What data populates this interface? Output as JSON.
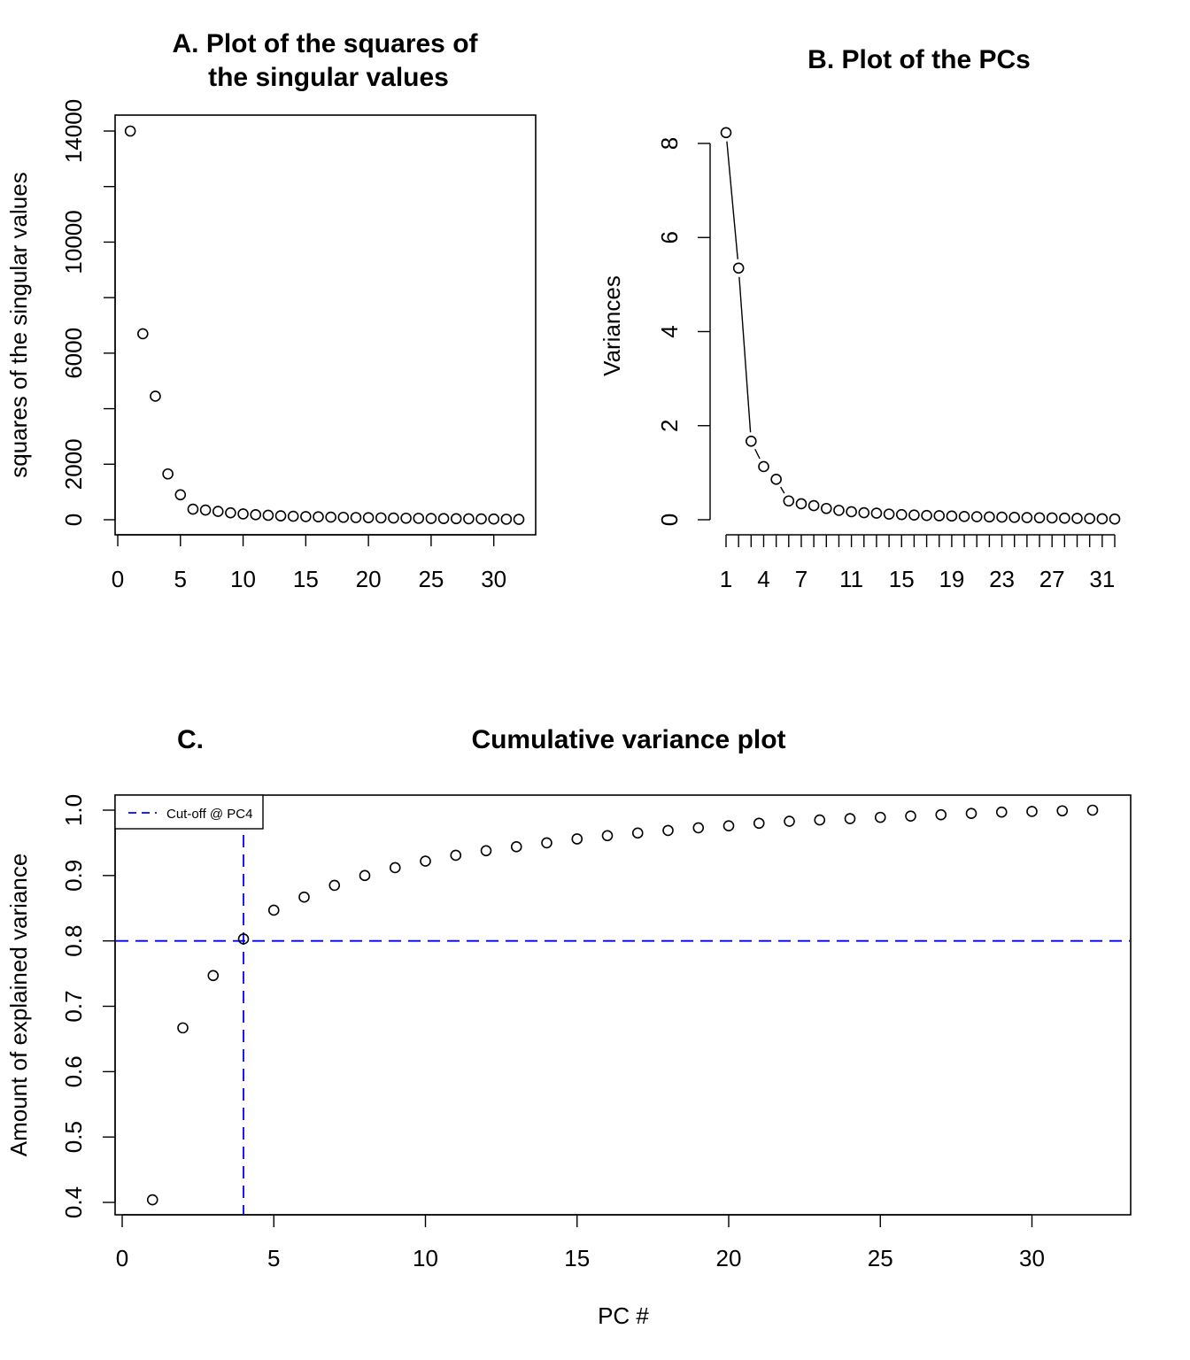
{
  "chart_data": [
    {
      "id": "A",
      "type": "scatter",
      "title_lines": [
        "A. Plot of the squares of",
        "the singular values"
      ],
      "xlabel": "",
      "ylabel": "squares of the singular values",
      "xlim": [
        0,
        32
      ],
      "ylim": [
        0,
        14000
      ],
      "xticks": [
        0,
        5,
        10,
        15,
        20,
        25,
        30
      ],
      "yticks": [
        0,
        2000,
        4000,
        6000,
        8000,
        10000,
        12000,
        14000
      ],
      "yticklabels": [
        "0",
        "2000",
        "",
        "6000",
        "",
        "10000",
        "",
        "14000"
      ],
      "x": [
        1,
        2,
        3,
        4,
        5,
        6,
        7,
        8,
        9,
        10,
        11,
        12,
        13,
        14,
        15,
        16,
        17,
        18,
        19,
        20,
        21,
        22,
        23,
        24,
        25,
        26,
        27,
        28,
        29,
        30,
        31,
        32
      ],
      "y": [
        14000,
        6700,
        4450,
        1650,
        900,
        380,
        350,
        300,
        250,
        210,
        180,
        160,
        140,
        125,
        115,
        105,
        95,
        88,
        80,
        74,
        68,
        62,
        56,
        52,
        47,
        43,
        38,
        34,
        30,
        25,
        20,
        15
      ],
      "grid": false
    },
    {
      "id": "B",
      "type": "line",
      "title": "B. Plot of the PCs",
      "xlabel": "",
      "ylabel": "Variances",
      "ylim": [
        0,
        8
      ],
      "yticks": [
        0,
        2,
        4,
        6,
        8
      ],
      "x": [
        1,
        2,
        3,
        4,
        5,
        6,
        7,
        8,
        9,
        10,
        11,
        12,
        13,
        14,
        15,
        16,
        17,
        18,
        19,
        20,
        21,
        22,
        23,
        24,
        25,
        26,
        27,
        28,
        29,
        30,
        31,
        32
      ],
      "xticklabels": [
        "1",
        "4",
        "7",
        "11",
        "15",
        "19",
        "23",
        "27",
        "31"
      ],
      "y": [
        8.23,
        5.35,
        1.67,
        1.13,
        0.86,
        0.4,
        0.34,
        0.3,
        0.24,
        0.2,
        0.17,
        0.15,
        0.14,
        0.12,
        0.11,
        0.1,
        0.09,
        0.085,
        0.078,
        0.07,
        0.065,
        0.06,
        0.055,
        0.05,
        0.046,
        0.042,
        0.038,
        0.034,
        0.03,
        0.025,
        0.02,
        0.015
      ],
      "grid": false
    },
    {
      "id": "C",
      "type": "scatter",
      "panel_label": "C.",
      "title": "Cumulative variance plot",
      "xlabel": "PC #",
      "ylabel": "Amount of explained variance",
      "xlim": [
        0,
        32
      ],
      "ylim": [
        0.4,
        1.0
      ],
      "xticks": [
        0,
        5,
        10,
        15,
        20,
        25,
        30
      ],
      "yticks": [
        0.4,
        0.5,
        0.6,
        0.7,
        0.8,
        0.9,
        1.0
      ],
      "yticklabels": [
        "0.4",
        "0.5",
        "0.6",
        "0.7",
        "0.8",
        "0.9",
        "1.0"
      ],
      "x": [
        1,
        2,
        3,
        4,
        5,
        6,
        7,
        8,
        9,
        10,
        11,
        12,
        13,
        14,
        15,
        16,
        17,
        18,
        19,
        20,
        21,
        22,
        23,
        24,
        25,
        26,
        27,
        28,
        29,
        30,
        31,
        32
      ],
      "y": [
        0.404,
        0.667,
        0.747,
        0.803,
        0.847,
        0.867,
        0.885,
        0.9,
        0.912,
        0.922,
        0.931,
        0.938,
        0.944,
        0.95,
        0.956,
        0.961,
        0.965,
        0.969,
        0.973,
        0.976,
        0.98,
        0.983,
        0.985,
        0.987,
        0.989,
        0.991,
        0.993,
        0.995,
        0.997,
        0.998,
        0.999,
        1.0
      ],
      "reference_lines": [
        {
          "orientation": "horizontal",
          "value": 0.8,
          "color": "#0000ff",
          "style": "dashed"
        },
        {
          "orientation": "vertical",
          "value": 4,
          "color": "#0000ff",
          "style": "dashed"
        }
      ],
      "legend": {
        "placement": "top-left",
        "entries": [
          {
            "label": "Cut-off @ PC4",
            "color": "#0000ff",
            "style": "dashed"
          }
        ]
      },
      "grid": false
    }
  ]
}
